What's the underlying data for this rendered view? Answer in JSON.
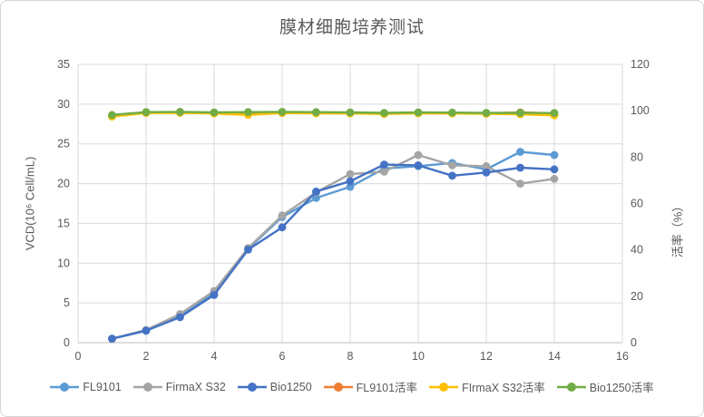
{
  "title": "膜材细胞培养测试",
  "colors": {
    "grid": "#d9d9d9",
    "axis_line": "#bfbfbf",
    "text": "#595959",
    "background": "#ffffff",
    "frame_border": "#d6d6d6"
  },
  "chart_data": {
    "type": "line",
    "title": "膜材细胞培养测试",
    "grid": true,
    "legend_position": "bottom",
    "x": [
      1,
      2,
      3,
      4,
      5,
      6,
      7,
      8,
      9,
      10,
      11,
      12,
      13,
      14
    ],
    "x_axis": {
      "min": 0,
      "max": 16,
      "ticks": [
        0,
        2,
        4,
        6,
        8,
        10,
        12,
        14,
        16
      ]
    },
    "y_left": {
      "label": "VCD(10⁶ Cell/mL)",
      "min": 0,
      "max": 35,
      "ticks": [
        0,
        5,
        10,
        15,
        20,
        25,
        30,
        35
      ]
    },
    "y_right": {
      "label": "活率（%）",
      "min": 0,
      "max": 120,
      "ticks": [
        0,
        20,
        40,
        60,
        80,
        100,
        120
      ]
    },
    "series": [
      {
        "name": "FL9101",
        "axis": "left",
        "color": "#5B9BD5",
        "values": [
          0.5,
          1.5,
          3.5,
          6.2,
          11.8,
          15.8,
          18.2,
          19.6,
          21.9,
          22.2,
          22.6,
          21.8,
          24.0,
          23.6
        ]
      },
      {
        "name": "FirmaX S32",
        "axis": "left",
        "color": "#A5A5A5",
        "values": [
          0.5,
          1.6,
          3.6,
          6.5,
          11.9,
          16.0,
          18.9,
          21.2,
          21.5,
          23.6,
          22.3,
          22.2,
          20.0,
          20.6
        ]
      },
      {
        "name": "Bio1250",
        "axis": "left",
        "color": "#4472C4",
        "values": [
          0.5,
          1.5,
          3.2,
          6.0,
          11.7,
          14.5,
          19.0,
          20.3,
          22.4,
          22.3,
          21.0,
          21.4,
          22.0,
          21.8
        ]
      },
      {
        "name": "FL9101活率",
        "axis": "right",
        "color": "#ED7D31",
        "values": [
          97.8,
          99.2,
          99.3,
          99.0,
          98.8,
          99.1,
          99.0,
          98.9,
          98.7,
          99.0,
          98.9,
          98.8,
          99.3,
          98.8
        ]
      },
      {
        "name": "FIrmaX S32活率",
        "axis": "right",
        "color": "#FFC000",
        "values": [
          97.5,
          99.0,
          99.1,
          98.8,
          98.2,
          99.0,
          98.9,
          98.8,
          98.6,
          98.9,
          98.8,
          98.7,
          98.5,
          98.0
        ]
      },
      {
        "name": "Bio1250活率",
        "axis": "right",
        "color": "#70AD47",
        "values": [
          98.2,
          99.4,
          99.5,
          99.3,
          99.4,
          99.5,
          99.4,
          99.3,
          99.1,
          99.3,
          99.2,
          99.1,
          99.1,
          99.0
        ]
      }
    ]
  }
}
